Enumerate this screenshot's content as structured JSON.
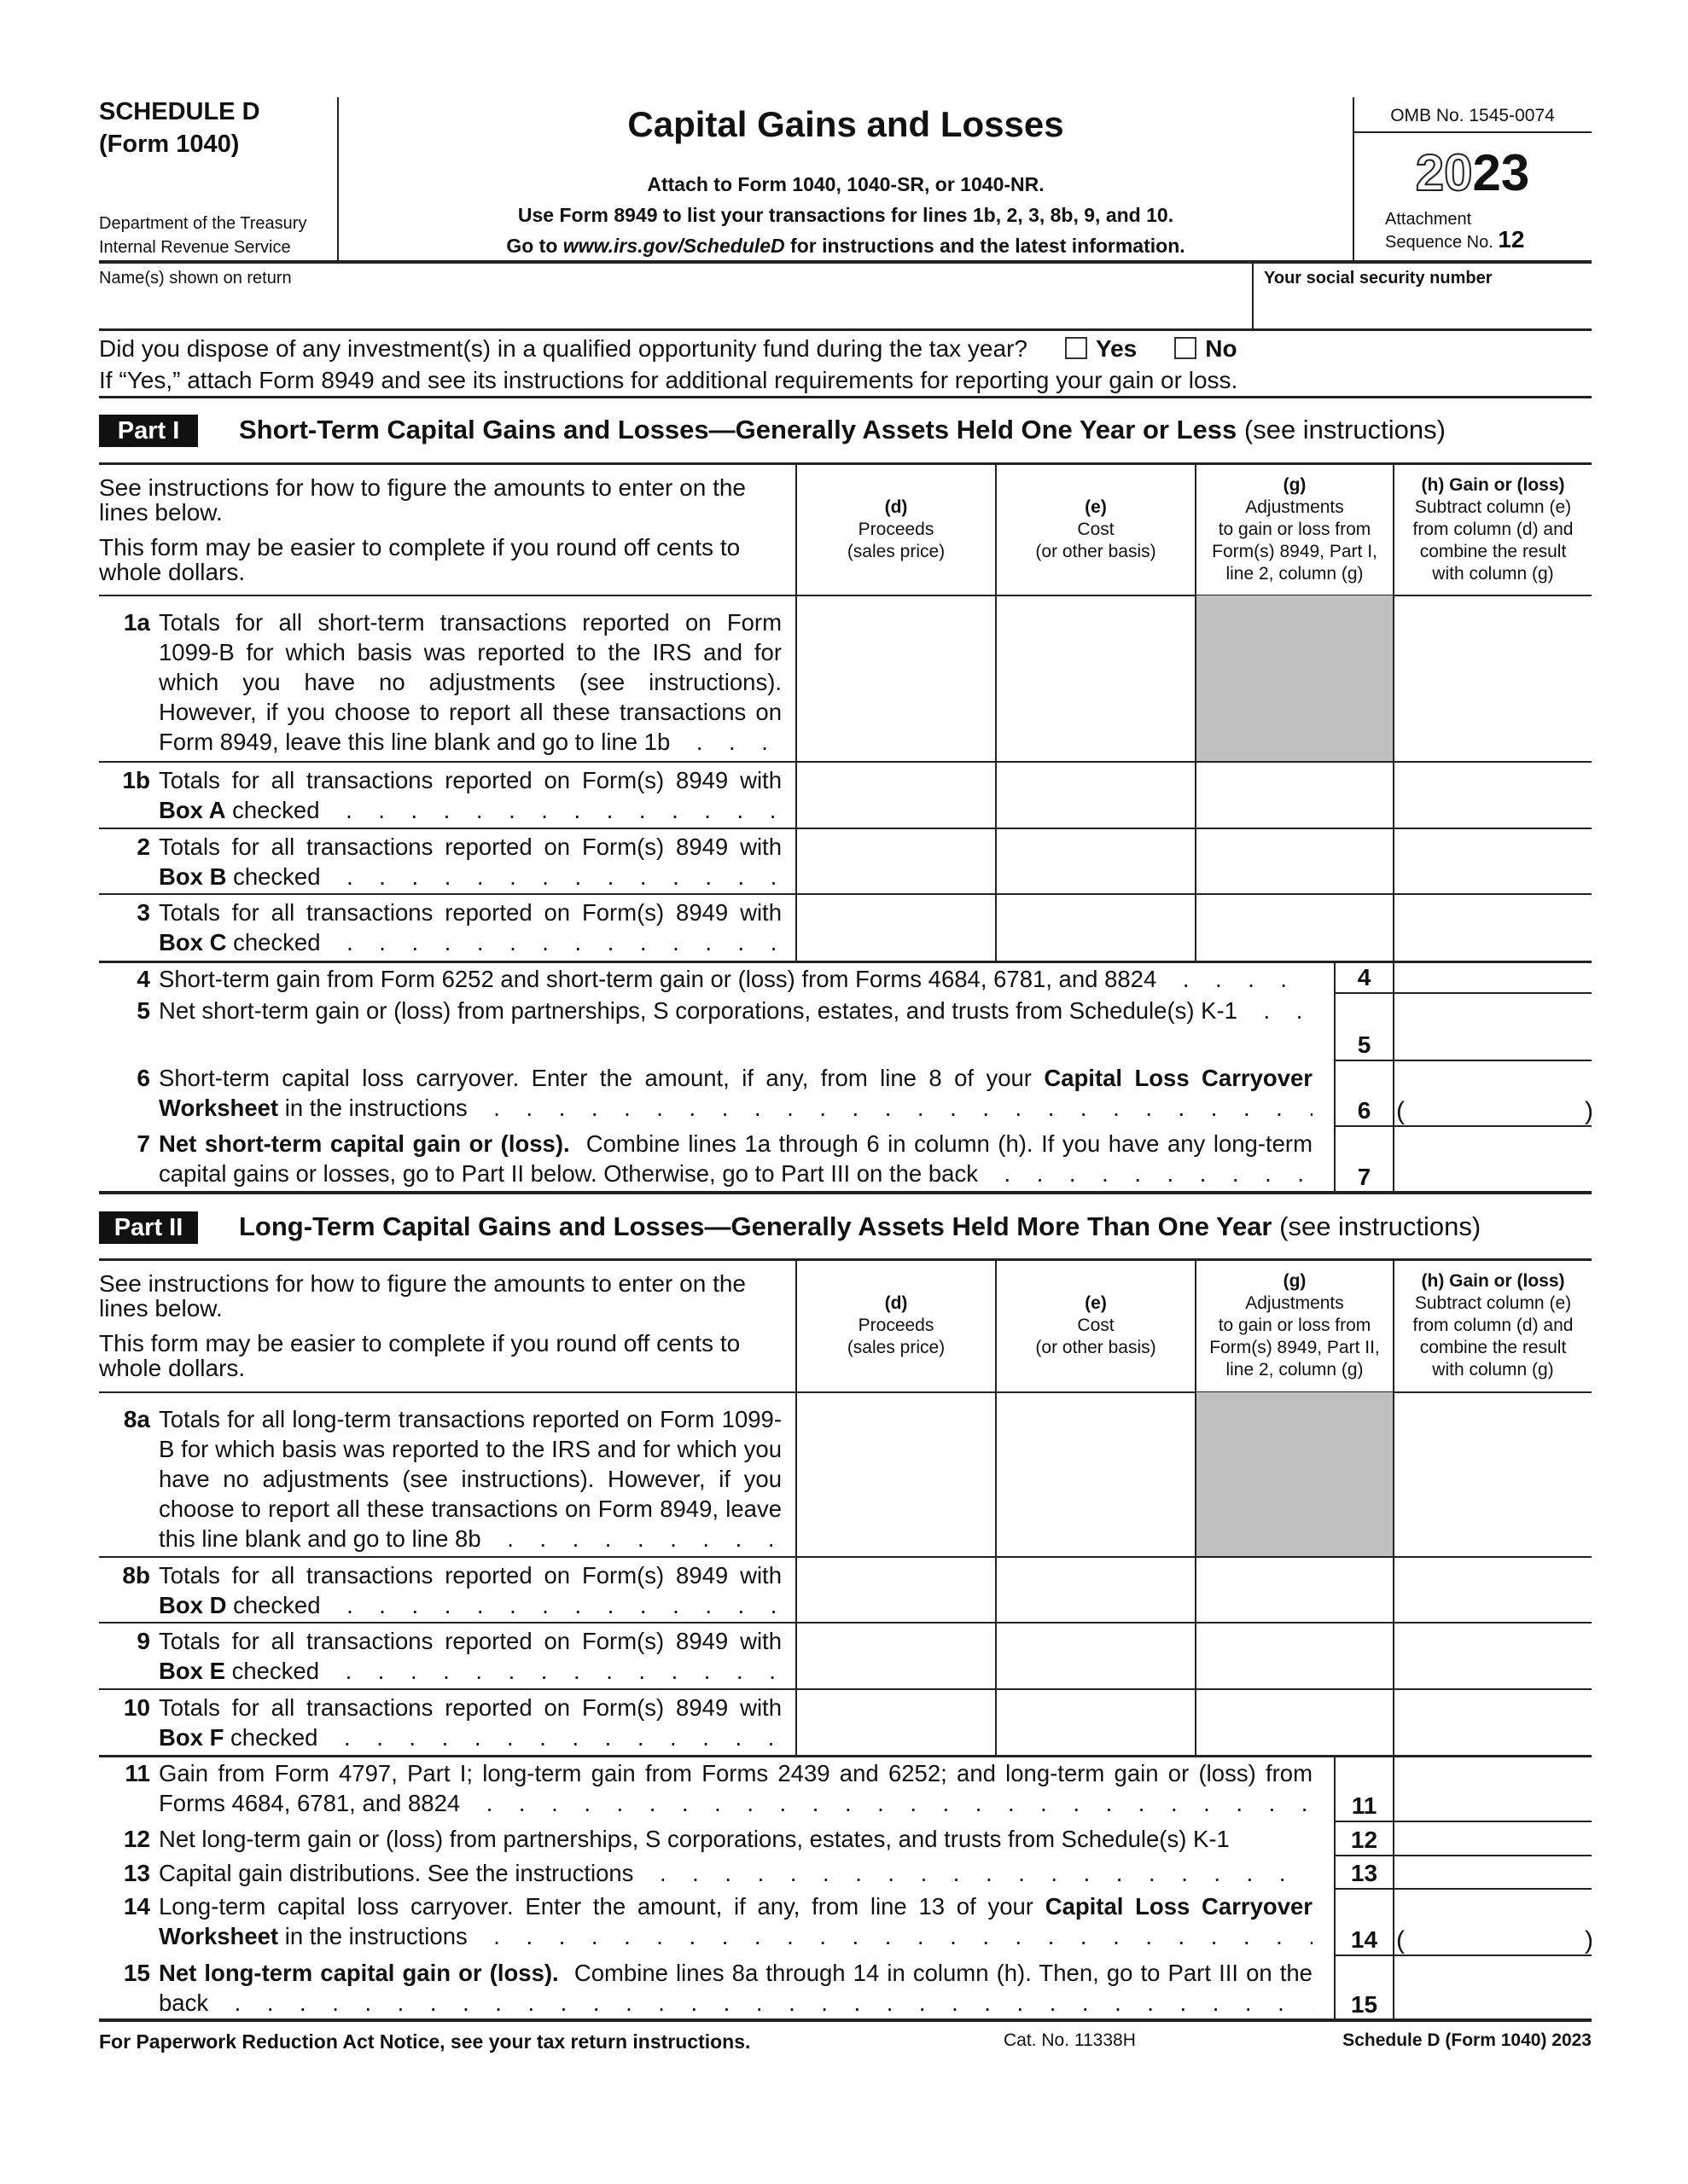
{
  "header": {
    "schedule": "SCHEDULE D",
    "form": "(Form 1040)",
    "dept_line1": "Department of the Treasury",
    "dept_line2": "Internal Revenue Service",
    "title": "Capital Gains and Losses",
    "sub1": "Attach to Form 1040, 1040-SR, or 1040-NR.",
    "sub2": "Use Form 8949 to list your transactions for lines 1b, 2, 3, 8b, 9, and 10.",
    "sub3_pre": "Go to ",
    "sub3_url": "www.irs.gov/ScheduleD",
    "sub3_post": " for instructions and the latest information.",
    "omb": "OMB No. 1545-0074",
    "year_outline": "20",
    "year_bold": "23",
    "attachment": "Attachment",
    "sequence_label": "Sequence No.",
    "sequence_no": "12"
  },
  "taxpayer": {
    "names_label": "Name(s) shown on return",
    "names_value": "",
    "ssn_label": "Your social security number",
    "ssn_value": ""
  },
  "qof": {
    "question": "Did you dispose of any investment(s) in a qualified opportunity fund during the tax year?",
    "yes": "Yes",
    "no": "No",
    "yes_checked": false,
    "no_checked": false,
    "note": "If “Yes,” attach Form 8949 and see its instructions for additional requirements for reporting your gain or loss."
  },
  "part1": {
    "badge": "Part I",
    "title": "Short-Term Capital Gains and Losses—Generally Assets Held One Year or Less",
    "note": "(see instructions)",
    "left_head1": "See instructions for how to figure the amounts to enter on the lines below.",
    "left_head2": "This form may be easier to complete if you round off cents to whole dollars.",
    "columns": [
      {
        "heading": "(d)",
        "lines": [
          "Proceeds",
          "(sales price)"
        ]
      },
      {
        "heading": "(e)",
        "lines": [
          "Cost",
          "(or other basis)"
        ]
      },
      {
        "heading": "(g)",
        "lines": [
          "Adjustments",
          "to gain or loss from",
          "Form(s) 8949, Part I,",
          "line 2, column (g)"
        ]
      },
      {
        "heading": "(h) Gain or (loss)",
        "lines": [
          "Subtract column (e)",
          "from column (d) and",
          "combine the result",
          "with column (g)"
        ]
      }
    ],
    "grid_rows": [
      {
        "num": "1a",
        "shaded_g": true,
        "parts": [
          {
            "text": "Totals for all short-term transactions reported on Form 1099-B for which basis was reported to the IRS and for which you have no adjustments (see instructions). However, if you choose to report all these transactions on Form 8949, leave this line blank and go to line 1b",
            "bold": false
          }
        ]
      },
      {
        "num": "1b",
        "parts": [
          {
            "text": "Totals for all transactions reported on Form(s) 8949 with ",
            "bold": false
          },
          {
            "text": "Box A",
            "bold": true
          },
          {
            "text": " checked",
            "bold": false
          }
        ]
      },
      {
        "num": "2",
        "parts": [
          {
            "text": "Totals for all transactions reported on Form(s) 8949 with ",
            "bold": false
          },
          {
            "text": "Box B",
            "bold": true
          },
          {
            "text": " checked",
            "bold": false
          }
        ]
      },
      {
        "num": "3",
        "parts": [
          {
            "text": "Totals for all transactions reported on Form(s) 8949 with ",
            "bold": false
          },
          {
            "text": "Box C",
            "bold": true
          },
          {
            "text": " checked",
            "bold": false
          }
        ]
      }
    ],
    "line_rows": [
      {
        "num": "4",
        "parts": [
          {
            "text": "Short-term gain from Form 6252 and short-term gain or (loss) from Forms 4684, 6781, and 8824",
            "bold": false
          }
        ]
      },
      {
        "num": "5",
        "parts": [
          {
            "text": "Net short-term gain or (loss) from partnerships, S corporations, estates, and trusts from Schedule(s) K-1",
            "bold": false
          }
        ]
      },
      {
        "num": "6",
        "parens": true,
        "parts": [
          {
            "text": "Short-term capital loss carryover. Enter the amount, if any, from line 8 of your ",
            "bold": false
          },
          {
            "text": "Capital Loss Carryover Worksheet",
            "bold": true
          },
          {
            "text": " in the instructions",
            "bold": false
          }
        ]
      },
      {
        "num": "7",
        "parts": [
          {
            "text": "Net short-term capital gain or (loss).",
            "bold": true
          },
          {
            "text": "  Combine lines 1a through 6 in column (h). If you have any long-term capital gains or losses, go to Part II below. Otherwise, go to Part III on the back",
            "bold": false
          }
        ]
      }
    ]
  },
  "part2": {
    "badge": "Part II",
    "title": "Long-Term Capital Gains and Losses—Generally Assets Held More Than One Year",
    "note": "(see instructions)",
    "left_head1": "See instructions for how to figure the amounts to enter on the lines below.",
    "left_head2": "This form may be easier to complete if you round off cents to whole dollars.",
    "columns": [
      {
        "heading": "(d)",
        "lines": [
          "Proceeds",
          "(sales price)"
        ]
      },
      {
        "heading": "(e)",
        "lines": [
          "Cost",
          "(or other basis)"
        ]
      },
      {
        "heading": "(g)",
        "lines": [
          "Adjustments",
          "to gain or loss from",
          "Form(s) 8949, Part II,",
          "line 2, column (g)"
        ]
      },
      {
        "heading": "(h) Gain or (loss)",
        "lines": [
          "Subtract column (e)",
          "from column (d) and",
          "combine the result",
          "with column (g)"
        ]
      }
    ],
    "grid_rows": [
      {
        "num": "8a",
        "shaded_g": true,
        "parts": [
          {
            "text": "Totals for all long-term transactions reported on Form 1099-B for which basis was reported to the IRS and for which you have no adjustments (see instructions). However, if you choose to report all these transactions on Form 8949, leave this line blank and go to line 8b",
            "bold": false
          }
        ]
      },
      {
        "num": "8b",
        "parts": [
          {
            "text": "Totals for all transactions reported on Form(s) 8949 with ",
            "bold": false
          },
          {
            "text": "Box D",
            "bold": true
          },
          {
            "text": " checked",
            "bold": false
          }
        ]
      },
      {
        "num": "9",
        "parts": [
          {
            "text": "Totals for all transactions reported on Form(s) 8949 with ",
            "bold": false
          },
          {
            "text": "Box E",
            "bold": true
          },
          {
            "text": " checked",
            "bold": false
          }
        ]
      },
      {
        "num": "10",
        "parts": [
          {
            "text": "Totals for all transactions reported on Form(s) 8949 with ",
            "bold": false
          },
          {
            "text": "Box F",
            "bold": true
          },
          {
            "text": " checked",
            "bold": false
          }
        ]
      }
    ],
    "line_rows": [
      {
        "num": "11",
        "parts": [
          {
            "text": "Gain from Form 4797, Part I; long-term gain from Forms 2439 and 6252; and long-term gain or (loss) from Forms 4684, 6781, and 8824",
            "bold": false
          }
        ]
      },
      {
        "num": "12",
        "parts": [
          {
            "text": "Net long-term gain or (loss) from partnerships, S corporations, estates, and trusts from Schedule(s) K-1",
            "bold": false
          }
        ],
        "no_leader": true
      },
      {
        "num": "13",
        "parts": [
          {
            "text": "Capital gain distributions. See the instructions",
            "bold": false
          }
        ]
      },
      {
        "num": "14",
        "parens": true,
        "parts": [
          {
            "text": "Long-term capital loss carryover. Enter the amount, if any, from line 13 of your ",
            "bold": false
          },
          {
            "text": "Capital Loss Carryover Worksheet",
            "bold": true
          },
          {
            "text": " in the instructions",
            "bold": false
          }
        ]
      },
      {
        "num": "15",
        "parts": [
          {
            "text": "Net long-term capital gain or (loss).",
            "bold": true
          },
          {
            "text": "  Combine lines 8a through 14 in column (h). Then, go to Part III on the back",
            "bold": false
          }
        ]
      }
    ]
  },
  "footer": {
    "notice": "For Paperwork Reduction Act Notice, see your tax return instructions.",
    "cat": "Cat. No. 11338H",
    "form_id": "Schedule D (Form 1040) 2023"
  }
}
